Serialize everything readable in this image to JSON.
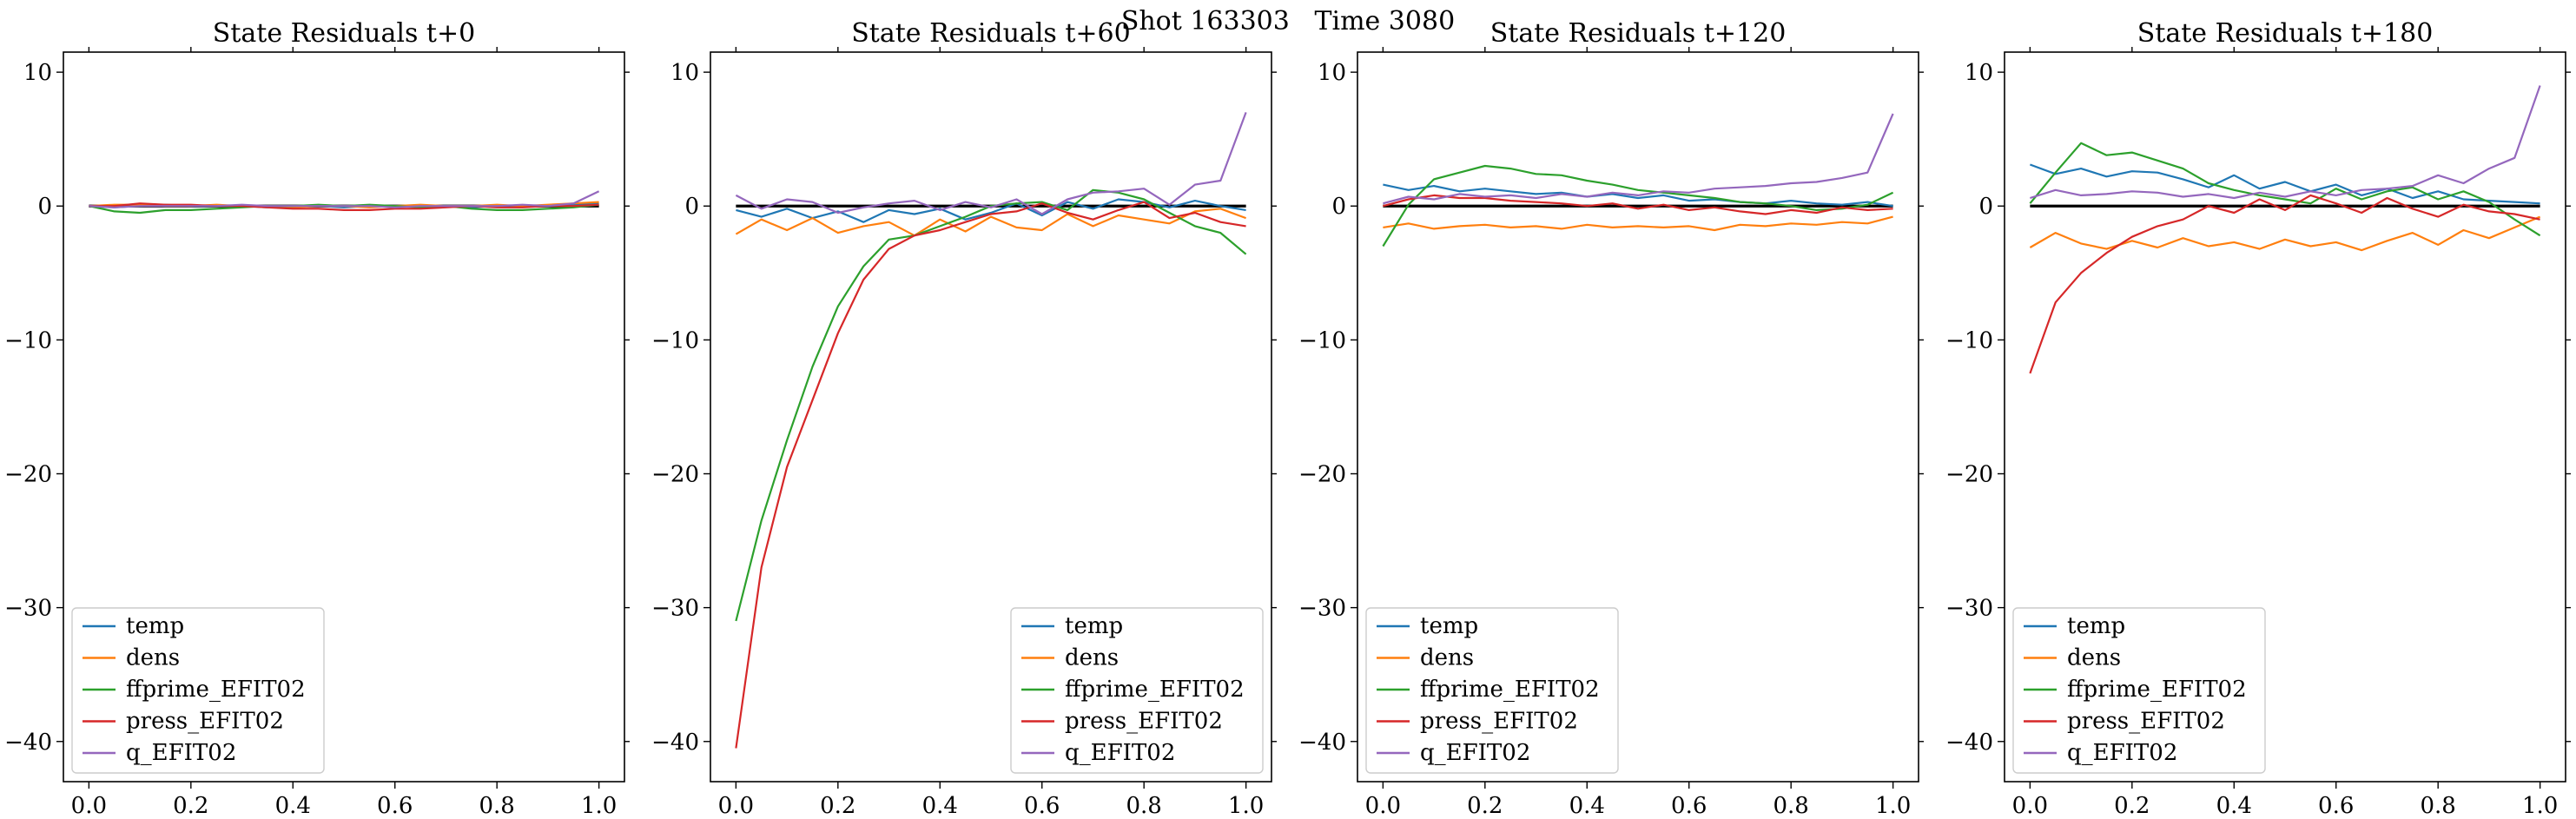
{
  "figure_title": "Shot 163303   Time 3080",
  "colors": {
    "temp": "#1f77b4",
    "dens": "#ff7f0e",
    "ffprime_EFIT02": "#2ca02c",
    "press_EFIT02": "#d62728",
    "q_EFIT02": "#9467bd",
    "baseline": "#000000"
  },
  "chart_data": [
    {
      "type": "line",
      "title": "State Residuals t+0",
      "xlim": [
        -0.05,
        1.05
      ],
      "ylim": [
        -43,
        11.5
      ],
      "xticks": [
        0.0,
        0.2,
        0.4,
        0.6,
        0.8,
        1.0
      ],
      "xtick_labels": [
        "0.0",
        "0.2",
        "0.4",
        "0.6",
        "0.8",
        "1.0"
      ],
      "yticks": [
        10,
        0,
        -10,
        -20,
        -30,
        -40
      ],
      "ytick_labels": [
        "10",
        "0",
        "−10",
        "−20",
        "−30",
        "−40"
      ],
      "legend_position": "lower-left",
      "x": [
        0.0,
        0.05,
        0.1,
        0.15,
        0.2,
        0.25,
        0.3,
        0.35,
        0.4,
        0.45,
        0.5,
        0.55,
        0.6,
        0.65,
        0.7,
        0.75,
        0.8,
        0.85,
        0.9,
        0.95,
        1.0
      ],
      "series": [
        {
          "name": "temp",
          "values": [
            0.0,
            -0.1,
            0.0,
            0.1,
            0.0,
            0.0,
            0.0,
            -0.1,
            0.0,
            0.0,
            -0.1,
            0.0,
            0.0,
            0.0,
            0.0,
            -0.1,
            0.0,
            0.0,
            0.0,
            0.1,
            0.2
          ]
        },
        {
          "name": "dens",
          "values": [
            0.0,
            0.1,
            0.1,
            0.0,
            0.0,
            0.1,
            0.0,
            0.0,
            -0.1,
            0.0,
            0.0,
            -0.1,
            0.0,
            0.1,
            0.0,
            0.0,
            0.1,
            0.0,
            0.1,
            0.2,
            0.3
          ]
        },
        {
          "name": "ffprime_EFIT02",
          "values": [
            0.0,
            -0.4,
            -0.5,
            -0.3,
            -0.3,
            -0.2,
            -0.1,
            0.0,
            0.0,
            0.1,
            0.0,
            0.1,
            0.0,
            -0.1,
            0.0,
            -0.2,
            -0.3,
            -0.3,
            -0.2,
            -0.1,
            0.1
          ]
        },
        {
          "name": "press_EFIT02",
          "values": [
            0.0,
            0.0,
            0.2,
            0.1,
            0.1,
            0.0,
            0.0,
            -0.1,
            -0.2,
            -0.2,
            -0.3,
            -0.3,
            -0.2,
            -0.2,
            -0.1,
            0.0,
            -0.1,
            -0.1,
            0.0,
            0.0,
            0.1
          ]
        },
        {
          "name": "q_EFIT02",
          "values": [
            0.0,
            -0.1,
            0.0,
            0.0,
            0.0,
            0.0,
            0.1,
            0.0,
            0.0,
            0.0,
            0.0,
            0.0,
            -0.1,
            0.0,
            0.0,
            0.0,
            0.0,
            0.1,
            0.0,
            0.2,
            1.1
          ]
        }
      ]
    },
    {
      "type": "line",
      "title": "State Residuals t+60",
      "xlim": [
        -0.05,
        1.05
      ],
      "ylim": [
        -43,
        11.5
      ],
      "xticks": [
        0.0,
        0.2,
        0.4,
        0.6,
        0.8,
        1.0
      ],
      "xtick_labels": [
        "0.0",
        "0.2",
        "0.4",
        "0.6",
        "0.8",
        "1.0"
      ],
      "yticks": [
        10,
        0,
        -10,
        -20,
        -30,
        -40
      ],
      "ytick_labels": [
        "10",
        "0",
        "−10",
        "−20",
        "−30",
        "−40"
      ],
      "legend_position": "lower-right",
      "x": [
        0.0,
        0.05,
        0.1,
        0.15,
        0.2,
        0.25,
        0.3,
        0.35,
        0.4,
        0.45,
        0.5,
        0.55,
        0.6,
        0.65,
        0.7,
        0.75,
        0.8,
        0.85,
        0.9,
        0.95,
        1.0
      ],
      "series": [
        {
          "name": "temp",
          "values": [
            -0.3,
            -0.8,
            -0.2,
            -0.9,
            -0.4,
            -1.2,
            -0.3,
            -0.6,
            -0.2,
            -1.0,
            -0.5,
            0.2,
            -0.7,
            0.3,
            -0.2,
            0.5,
            0.3,
            -0.1,
            0.4,
            0.0,
            -0.3
          ]
        },
        {
          "name": "dens",
          "values": [
            -2.1,
            -1.0,
            -1.8,
            -0.9,
            -2.0,
            -1.5,
            -1.2,
            -2.2,
            -1.0,
            -1.9,
            -0.8,
            -1.6,
            -1.8,
            -0.6,
            -1.5,
            -0.7,
            -1.0,
            -1.3,
            -0.4,
            -0.2,
            -0.9
          ]
        },
        {
          "name": "ffprime_EFIT02",
          "values": [
            -31.0,
            -23.5,
            -17.5,
            -12.0,
            -7.5,
            -4.5,
            -2.5,
            -2.2,
            -1.5,
            -0.8,
            0.0,
            0.2,
            0.3,
            -0.3,
            1.2,
            1.0,
            0.5,
            -0.5,
            -1.5,
            -2.0,
            -3.6
          ]
        },
        {
          "name": "press_EFIT02",
          "values": [
            -40.5,
            -27.0,
            -19.5,
            -14.5,
            -9.5,
            -5.5,
            -3.2,
            -2.2,
            -1.8,
            -1.2,
            -0.6,
            -0.4,
            0.2,
            -0.5,
            -1.0,
            -0.3,
            0.3,
            -0.9,
            -0.5,
            -1.2,
            -1.5
          ]
        },
        {
          "name": "q_EFIT02",
          "values": [
            0.8,
            -0.2,
            0.5,
            0.3,
            -0.5,
            -0.1,
            0.2,
            0.4,
            -0.3,
            0.3,
            -0.1,
            0.5,
            -0.6,
            0.5,
            1.0,
            1.1,
            1.3,
            0.1,
            1.6,
            1.9,
            7.0
          ]
        }
      ]
    },
    {
      "type": "line",
      "title": "State Residuals t+120",
      "xlim": [
        -0.05,
        1.05
      ],
      "ylim": [
        -43,
        11.5
      ],
      "xticks": [
        0.0,
        0.2,
        0.4,
        0.6,
        0.8,
        1.0
      ],
      "xtick_labels": [
        "0.0",
        "0.2",
        "0.4",
        "0.6",
        "0.8",
        "1.0"
      ],
      "yticks": [
        10,
        0,
        -10,
        -20,
        -30,
        -40
      ],
      "ytick_labels": [
        "10",
        "0",
        "−10",
        "−20",
        "−30",
        "−40"
      ],
      "legend_position": "lower-left",
      "x": [
        0.0,
        0.05,
        0.1,
        0.15,
        0.2,
        0.25,
        0.3,
        0.35,
        0.4,
        0.45,
        0.5,
        0.55,
        0.6,
        0.65,
        0.7,
        0.75,
        0.8,
        0.85,
        0.9,
        0.95,
        1.0
      ],
      "series": [
        {
          "name": "temp",
          "values": [
            1.6,
            1.2,
            1.5,
            1.1,
            1.3,
            1.1,
            0.9,
            1.0,
            0.7,
            0.9,
            0.6,
            0.8,
            0.4,
            0.5,
            0.3,
            0.2,
            0.4,
            0.2,
            0.1,
            0.3,
            0.0
          ]
        },
        {
          "name": "dens",
          "values": [
            -1.6,
            -1.3,
            -1.7,
            -1.5,
            -1.4,
            -1.6,
            -1.5,
            -1.7,
            -1.4,
            -1.6,
            -1.5,
            -1.6,
            -1.5,
            -1.8,
            -1.4,
            -1.5,
            -1.3,
            -1.4,
            -1.2,
            -1.3,
            -0.8
          ]
        },
        {
          "name": "ffprime_EFIT02",
          "values": [
            -3.0,
            0.1,
            2.0,
            2.5,
            3.0,
            2.8,
            2.4,
            2.3,
            1.9,
            1.6,
            1.2,
            1.0,
            0.8,
            0.6,
            0.3,
            0.2,
            0.0,
            -0.3,
            -0.2,
            0.1,
            1.0
          ]
        },
        {
          "name": "press_EFIT02",
          "values": [
            0.0,
            0.5,
            0.8,
            0.6,
            0.6,
            0.4,
            0.3,
            0.2,
            0.0,
            0.2,
            -0.2,
            0.1,
            -0.3,
            -0.1,
            -0.4,
            -0.6,
            -0.3,
            -0.5,
            -0.1,
            -0.3,
            -0.2
          ]
        },
        {
          "name": "q_EFIT02",
          "values": [
            0.2,
            0.7,
            0.5,
            0.9,
            0.7,
            0.8,
            0.6,
            0.9,
            0.7,
            1.0,
            0.8,
            1.1,
            1.0,
            1.3,
            1.4,
            1.5,
            1.7,
            1.8,
            2.1,
            2.5,
            6.9
          ]
        }
      ]
    },
    {
      "type": "line",
      "title": "State Residuals t+180",
      "xlim": [
        -0.05,
        1.05
      ],
      "ylim": [
        -43,
        11.5
      ],
      "xticks": [
        0.0,
        0.2,
        0.4,
        0.6,
        0.8,
        1.0
      ],
      "xtick_labels": [
        "0.0",
        "0.2",
        "0.4",
        "0.6",
        "0.8",
        "1.0"
      ],
      "yticks": [
        10,
        0,
        -10,
        -20,
        -30,
        -40
      ],
      "ytick_labels": [
        "10",
        "0",
        "−10",
        "−20",
        "−30",
        "−40"
      ],
      "legend_position": "lower-left",
      "x": [
        0.0,
        0.05,
        0.1,
        0.15,
        0.2,
        0.25,
        0.3,
        0.35,
        0.4,
        0.45,
        0.5,
        0.55,
        0.6,
        0.65,
        0.7,
        0.75,
        0.8,
        0.85,
        0.9,
        0.95,
        1.0
      ],
      "series": [
        {
          "name": "temp",
          "values": [
            3.1,
            2.4,
            2.8,
            2.2,
            2.6,
            2.5,
            2.0,
            1.4,
            2.3,
            1.3,
            1.8,
            1.1,
            1.6,
            0.8,
            1.3,
            0.6,
            1.1,
            0.5,
            0.4,
            0.3,
            0.2
          ]
        },
        {
          "name": "dens",
          "values": [
            -3.1,
            -2.0,
            -2.8,
            -3.2,
            -2.6,
            -3.1,
            -2.4,
            -3.0,
            -2.7,
            -3.2,
            -2.5,
            -3.0,
            -2.7,
            -3.3,
            -2.6,
            -2.0,
            -2.9,
            -1.8,
            -2.4,
            -1.6,
            -0.8
          ]
        },
        {
          "name": "ffprime_EFIT02",
          "values": [
            0.2,
            2.5,
            4.7,
            3.8,
            4.0,
            3.4,
            2.8,
            1.7,
            1.2,
            0.8,
            0.5,
            0.2,
            1.3,
            0.5,
            1.1,
            1.4,
            0.5,
            1.1,
            0.3,
            -1.0,
            -2.2
          ]
        },
        {
          "name": "press_EFIT02",
          "values": [
            -12.5,
            -7.2,
            -5.0,
            -3.5,
            -2.3,
            -1.5,
            -1.0,
            0.0,
            -0.5,
            0.5,
            -0.3,
            0.8,
            0.2,
            -0.5,
            0.6,
            -0.2,
            -0.8,
            0.1,
            -0.4,
            -0.6,
            -1.0
          ]
        },
        {
          "name": "q_EFIT02",
          "values": [
            0.6,
            1.2,
            0.8,
            0.9,
            1.1,
            1.0,
            0.7,
            0.9,
            0.6,
            1.0,
            0.7,
            1.1,
            0.8,
            1.2,
            1.3,
            1.5,
            2.3,
            1.7,
            2.8,
            3.6,
            9.0
          ]
        }
      ]
    }
  ]
}
